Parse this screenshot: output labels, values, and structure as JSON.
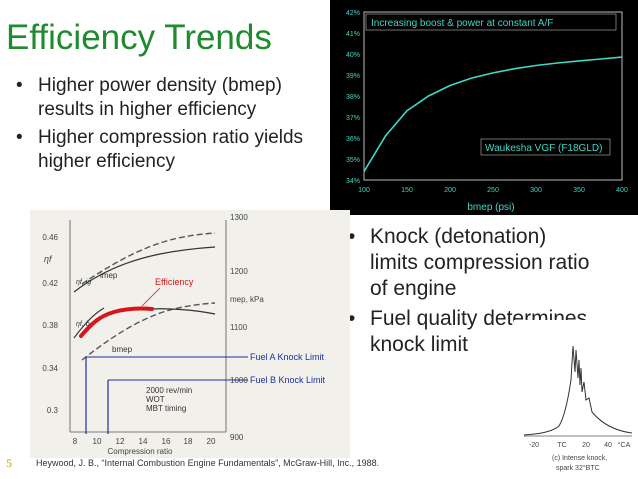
{
  "slide": {
    "title": "Efficiency Trends",
    "bullets_left": [
      "Higher power density (bmep) results in higher efficiency",
      "Higher compression ratio yields higher efficiency"
    ],
    "bullets_right": [
      "Knock (detonation) limits compression ratio of engine",
      "Fuel quality determines knock limit"
    ],
    "footer": "Heywood, J. B., “Internal Combustion Engine Fundamentals”, McGraw-Hill, Inc., 1988.",
    "slide_number": "5"
  },
  "colors": {
    "title": "#1f8a2e",
    "chart_bg": "#000000",
    "chart_line": "#3fd7c7",
    "efficiency_curve": "#d8141c",
    "knock_limit_line": "#1a2f9e"
  },
  "efficiency_chart": {
    "annotation_top": "Increasing boost & power at constant A/F",
    "annotation_engine": "Waukesha VGF (F18GLD)",
    "xlabel": "bmep (psi)",
    "xticks": [
      "100",
      "150",
      "200",
      "250",
      "300",
      "350",
      "400"
    ],
    "yticks": [
      "34%",
      "35%",
      "36%",
      "37%",
      "38%",
      "39%",
      "40%",
      "41%",
      "42%"
    ]
  },
  "knock_graph": {
    "label_efficiency": "Efficiency",
    "label_fuel_a": "Fuel A Knock Limit",
    "label_fuel_b": "Fuel B  Knock Limit",
    "label_conditions": [
      "2000 rev/min",
      "WOT",
      "MBT timing"
    ],
    "xlabel": "Compression ratio",
    "xticks": [
      "8",
      "10",
      "12",
      "14",
      "16",
      "18",
      "20"
    ],
    "y_left_ticks": [
      "0.46",
      "0.42",
      "0.38",
      "0.34",
      "0.3"
    ],
    "y_left_label": "ηf",
    "y_right_ticks": [
      "1300",
      "1200",
      "1100",
      "1000",
      "900"
    ],
    "y_right_label": "mep, kPa",
    "curve_labels": [
      "imep",
      "bmep",
      "ηf, ig",
      "ηf, b"
    ]
  },
  "spectrum_graph": {
    "xticks": [
      "-20",
      "TC",
      "20",
      "40",
      "°CA"
    ],
    "caption": [
      "(c) Intense knock,",
      "spark 32°BTC"
    ]
  },
  "chart_data": [
    {
      "type": "line",
      "title": "Increasing boost & power at constant A/F",
      "xlabel": "bmep (psi)",
      "ylabel": "",
      "xlim": [
        100,
        400
      ],
      "ylim": [
        34,
        42
      ],
      "grid": false,
      "series": [
        {
          "name": "Waukesha VGF (F18GLD)",
          "x": [
            100,
            125,
            150,
            175,
            200,
            225,
            250,
            275,
            300,
            325,
            350,
            375,
            400
          ],
          "y": [
            34.4,
            36.1,
            37.3,
            38.0,
            38.5,
            38.85,
            39.1,
            39.3,
            39.45,
            39.57,
            39.67,
            39.76,
            39.85
          ]
        }
      ]
    }
  ]
}
